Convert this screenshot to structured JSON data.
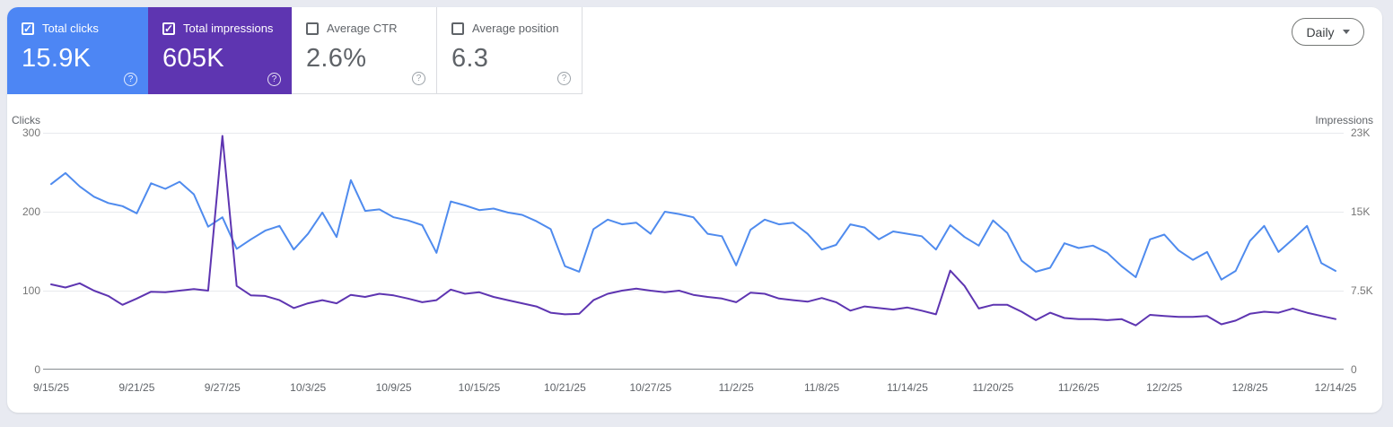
{
  "cards": [
    {
      "label": "Total clicks",
      "value": "15.9K",
      "checked": true,
      "bg": "#4d86f4",
      "help_icon": "?"
    },
    {
      "label": "Total impressions",
      "value": "605K",
      "checked": true,
      "bg": "#5e35b1",
      "help_icon": "?"
    },
    {
      "label": "Average CTR",
      "value": "2.6%",
      "checked": false,
      "bg": "#ffffff",
      "help_icon": "?"
    },
    {
      "label": "Average position",
      "value": "6.3",
      "checked": false,
      "bg": "#ffffff",
      "help_icon": "?"
    }
  ],
  "controls": {
    "granularity": "Daily"
  },
  "chart_data": {
    "type": "line",
    "x_tick_labels": [
      "9/15/25",
      "9/21/25",
      "9/27/25",
      "10/3/25",
      "10/9/25",
      "10/15/25",
      "10/21/25",
      "10/27/25",
      "11/2/25",
      "11/8/25",
      "11/14/25",
      "11/20/25",
      "11/26/25",
      "12/2/25",
      "12/8/25",
      "12/14/25"
    ],
    "left_axis": {
      "title": "Clicks",
      "tick_labels": [
        "300",
        "200",
        "100",
        "0"
      ],
      "max": 300
    },
    "right_axis": {
      "title": "Impressions",
      "tick_labels": [
        "23K",
        "15K",
        "7.5K",
        "0"
      ],
      "max": 22500
    },
    "grid": true,
    "series": [
      {
        "name": "Clicks",
        "axis": "left",
        "color": "#4f8bee",
        "values": [
          235,
          249,
          232,
          219,
          211,
          207,
          198,
          236,
          229,
          238,
          222,
          181,
          193,
          153,
          165,
          176,
          182,
          152,
          172,
          199,
          168,
          240,
          201,
          203,
          193,
          189,
          183,
          148,
          213,
          208,
          202,
          204,
          199,
          196,
          188,
          178,
          131,
          124,
          178,
          190,
          184,
          186,
          172,
          200,
          197,
          193,
          172,
          169,
          132,
          177,
          190,
          184,
          186,
          172,
          152,
          158,
          184,
          180,
          165,
          175,
          172,
          169,
          152,
          183,
          168,
          157,
          189,
          173,
          138,
          124,
          129,
          160,
          154,
          157,
          148,
          131,
          117,
          165,
          171,
          151,
          139,
          149,
          114,
          125,
          163,
          182,
          149,
          165,
          182,
          135,
          125
        ]
      },
      {
        "name": "Impressions",
        "axis": "right",
        "color": "#5e35b1",
        "values": [
          8100,
          7800,
          8200,
          7500,
          7000,
          6150,
          6750,
          7400,
          7350,
          7500,
          7650,
          7500,
          22200,
          7950,
          7050,
          7000,
          6600,
          5850,
          6300,
          6600,
          6300,
          7100,
          6900,
          7200,
          7050,
          6750,
          6400,
          6600,
          7600,
          7200,
          7350,
          6900,
          6600,
          6300,
          6000,
          5400,
          5250,
          5300,
          6600,
          7200,
          7500,
          7700,
          7500,
          7350,
          7500,
          7100,
          6900,
          6750,
          6400,
          7300,
          7200,
          6750,
          6600,
          6450,
          6800,
          6400,
          5600,
          6000,
          5850,
          5700,
          5900,
          5600,
          5250,
          9400,
          7950,
          5800,
          6150,
          6150,
          5500,
          4700,
          5400,
          4900,
          4800,
          4800,
          4700,
          4800,
          4200,
          5200,
          5100,
          5000,
          5000,
          5100,
          4300,
          4650,
          5300,
          5500,
          5400,
          5800,
          5400,
          5100,
          4800
        ]
      }
    ]
  }
}
